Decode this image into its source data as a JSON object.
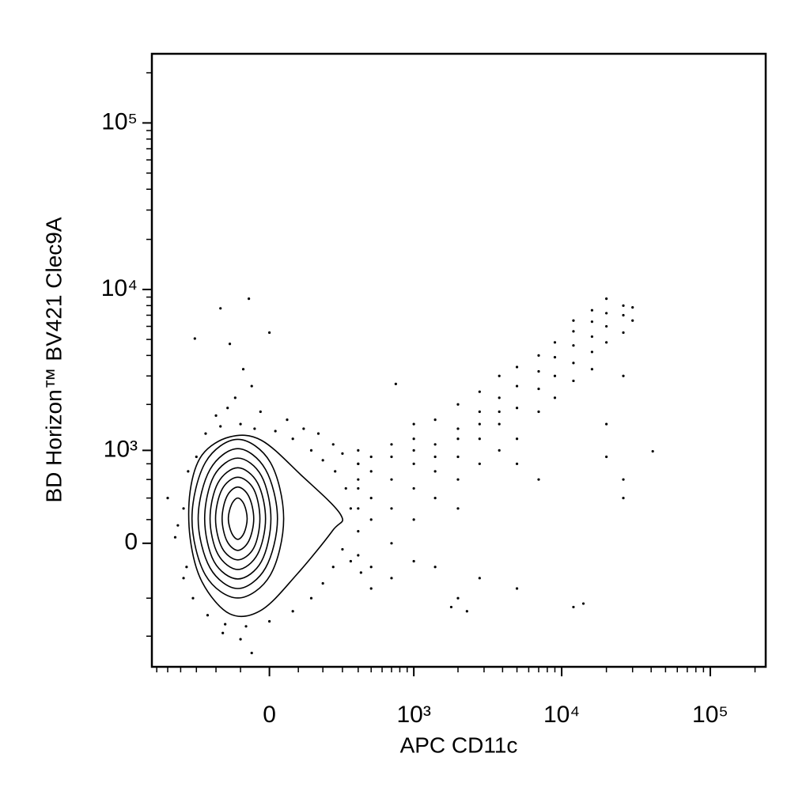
{
  "chart_data": {
    "type": "contour-scatter",
    "xlabel": "APC CD11c",
    "ylabel": "BD Horizon™ BV421 Clec9A",
    "xscale": "biexponential",
    "yscale": "biexponential",
    "color": "#000000",
    "xlim": [
      -650,
      236000
    ],
    "ylim": [
      -1600,
      260000
    ],
    "xticks": [
      0,
      {
        "value": 1000,
        "label": "10³"
      },
      {
        "value": 10000,
        "label": "10⁴"
      },
      {
        "value": 100000,
        "label": "10⁵"
      }
    ],
    "yticks": [
      0,
      {
        "value": 1000,
        "label": "10³"
      },
      {
        "value": 10000,
        "label": "10⁴"
      },
      {
        "value": 100000,
        "label": "10⁵"
      }
    ],
    "xminor": [
      -600,
      -500,
      -400,
      -300,
      -200,
      -100,
      100,
      200,
      300,
      400,
      500,
      600,
      700,
      800,
      900,
      2000,
      3000,
      4000,
      5000,
      6000,
      7000,
      8000,
      9000,
      20000,
      30000,
      40000,
      50000,
      60000,
      70000,
      80000,
      90000,
      200000
    ],
    "yminor": [
      -1000,
      -500,
      200,
      400,
      600,
      800,
      2000,
      3000,
      4000,
      5000,
      6000,
      7000,
      8000,
      9000,
      20000,
      30000,
      40000,
      50000,
      60000,
      70000,
      80000,
      90000,
      200000
    ],
    "contours": [
      {
        "x": [
          290,
          110,
          -27,
          -141,
          -268,
          -337,
          -337,
          -268,
          -141,
          -27,
          95,
          247
        ],
        "y": [
          243,
          654,
          1173,
          1236,
          930,
          474,
          40,
          -338,
          -683,
          -636,
          -265,
          106
        ]
      },
      {
        "x": [
          48,
          3,
          -110,
          -251,
          -326,
          -251,
          -110,
          3
        ],
        "y": [
          208,
          820,
          1190,
          820,
          208,
          -272,
          -498,
          -272
        ]
      },
      {
        "x": [
          27,
          -13,
          -110,
          -228,
          -290,
          -228,
          -110,
          -13
        ],
        "y": [
          208,
          724,
          1028,
          724,
          208,
          -208,
          -400,
          -208
        ]
      },
      {
        "x": [
          5,
          -27,
          -110,
          -209,
          -255,
          -209,
          -110,
          -27
        ],
        "y": [
          208,
          644,
          881,
          644,
          208,
          -153,
          -308,
          -153
        ]
      },
      {
        "x": [
          -13,
          -40,
          -110,
          -191,
          -228,
          -191,
          -110,
          -40
        ],
        "y": [
          208,
          561,
          746,
          561,
          208,
          -92,
          -222,
          -92
        ]
      },
      {
        "x": [
          -32,
          -53,
          -110,
          -173,
          -202,
          -173,
          -110,
          -53
        ],
        "y": [
          208,
          491,
          627,
          491,
          208,
          -39,
          -139,
          -39
        ]
      },
      {
        "x": [
          -53,
          -70,
          -110,
          -153,
          -173,
          -153,
          -110,
          -70
        ],
        "y": [
          208,
          416,
          515,
          416,
          208,
          20,
          -59,
          20
        ]
      },
      {
        "x": [
          -76,
          -87,
          -110,
          -134,
          -147,
          -134,
          -110,
          -87
        ],
        "y": [
          208,
          338,
          400,
          338,
          208,
          86,
          33,
          86
        ]
      }
    ],
    "points": [
      [
        -380,
        300
      ],
      [
        -420,
        150
      ],
      [
        -360,
        -200
      ],
      [
        -300,
        900
      ],
      [
        -250,
        1300
      ],
      [
        -180,
        1450
      ],
      [
        -100,
        1500
      ],
      [
        -50,
        1400
      ],
      [
        20,
        1350
      ],
      [
        80,
        1200
      ],
      [
        150,
        1000
      ],
      [
        200,
        850
      ],
      [
        260,
        700
      ],
      [
        320,
        500
      ],
      [
        350,
        300
      ],
      [
        300,
        -50
      ],
      [
        250,
        -200
      ],
      [
        200,
        -350
      ],
      [
        150,
        -500
      ],
      [
        80,
        -650
      ],
      [
        0,
        -780
      ],
      [
        -80,
        -850
      ],
      [
        -160,
        -820
      ],
      [
        -240,
        -700
      ],
      [
        -320,
        -500
      ],
      [
        -380,
        -300
      ],
      [
        -440,
        50
      ],
      [
        -500,
        400
      ],
      [
        -350,
        700
      ],
      [
        -200,
        1700
      ],
      [
        -120,
        2200
      ],
      [
        -60,
        2600
      ],
      [
        -90,
        3300
      ],
      [
        -150,
        1900
      ],
      [
        -30,
        1800
      ],
      [
        60,
        1600
      ],
      [
        120,
        1400
      ],
      [
        180,
        1300
      ],
      [
        250,
        1100
      ],
      [
        300,
        950
      ],
      [
        400,
        800
      ],
      [
        350,
        -150
      ],
      [
        420,
        -250
      ],
      [
        500,
        -400
      ],
      [
        -100,
        -1050
      ],
      [
        -170,
        -950
      ],
      [
        -60,
        -1300
      ],
      [
        -180,
        7700
      ],
      [
        -309,
        5060
      ],
      [
        -141,
        4700
      ],
      [
        0,
        5500
      ],
      [
        750,
        2680
      ],
      [
        41000,
        985
      ],
      [
        -70,
        8800
      ],
      [
        400,
        300
      ],
      [
        400,
        500
      ],
      [
        400,
        800
      ],
      [
        400,
        -100
      ],
      [
        400,
        100
      ],
      [
        400,
        600
      ],
      [
        400,
        1000
      ],
      [
        500,
        200
      ],
      [
        500,
        700
      ],
      [
        500,
        -200
      ],
      [
        500,
        900
      ],
      [
        500,
        400
      ],
      [
        700,
        300
      ],
      [
        700,
        600
      ],
      [
        700,
        1100
      ],
      [
        700,
        -300
      ],
      [
        700,
        900
      ],
      [
        700,
        0
      ],
      [
        1000,
        500
      ],
      [
        1000,
        800
      ],
      [
        1000,
        1200
      ],
      [
        1000,
        200
      ],
      [
        1000,
        1500
      ],
      [
        1000,
        -150
      ],
      [
        1000,
        1000
      ],
      [
        1400,
        700
      ],
      [
        1400,
        1100
      ],
      [
        1400,
        1600
      ],
      [
        1400,
        400
      ],
      [
        1400,
        -200
      ],
      [
        1400,
        900
      ],
      [
        2000,
        900
      ],
      [
        2000,
        1400
      ],
      [
        2000,
        2000
      ],
      [
        2000,
        600
      ],
      [
        2000,
        1200
      ],
      [
        2000,
        300
      ],
      [
        2000,
        -500
      ],
      [
        2800,
        1200
      ],
      [
        2800,
        1800
      ],
      [
        2800,
        2400
      ],
      [
        2800,
        800
      ],
      [
        2800,
        1500
      ],
      [
        2800,
        -300
      ],
      [
        3800,
        1500
      ],
      [
        3800,
        2200
      ],
      [
        3800,
        3000
      ],
      [
        3800,
        1000
      ],
      [
        3800,
        1800
      ],
      [
        5000,
        1900
      ],
      [
        5000,
        2600
      ],
      [
        5000,
        3400
      ],
      [
        5000,
        1200
      ],
      [
        5000,
        800
      ],
      [
        5000,
        -400
      ],
      [
        7000,
        2500
      ],
      [
        7000,
        3200
      ],
      [
        7000,
        4000
      ],
      [
        7000,
        1800
      ],
      [
        7000,
        600
      ],
      [
        9000,
        3000
      ],
      [
        9000,
        3900
      ],
      [
        9000,
        4800
      ],
      [
        9000,
        2200
      ],
      [
        12000,
        3600
      ],
      [
        12000,
        4600
      ],
      [
        12000,
        5600
      ],
      [
        12000,
        2800
      ],
      [
        12000,
        6500
      ],
      [
        12000,
        -600
      ],
      [
        16000,
        4200
      ],
      [
        16000,
        5200
      ],
      [
        16000,
        6400
      ],
      [
        16000,
        3300
      ],
      [
        16000,
        7500
      ],
      [
        20000,
        4800
      ],
      [
        20000,
        6000
      ],
      [
        20000,
        7200
      ],
      [
        20000,
        8800
      ],
      [
        20000,
        1500
      ],
      [
        20000,
        900
      ],
      [
        26000,
        5500
      ],
      [
        26000,
        7000
      ],
      [
        26000,
        8000
      ],
      [
        26000,
        3000
      ],
      [
        26000,
        600
      ],
      [
        26000,
        400
      ],
      [
        30000,
        6500
      ],
      [
        30000,
        7800
      ],
      [
        14000,
        -560
      ],
      [
        1800,
        -600
      ],
      [
        2300,
        -650
      ]
    ]
  }
}
